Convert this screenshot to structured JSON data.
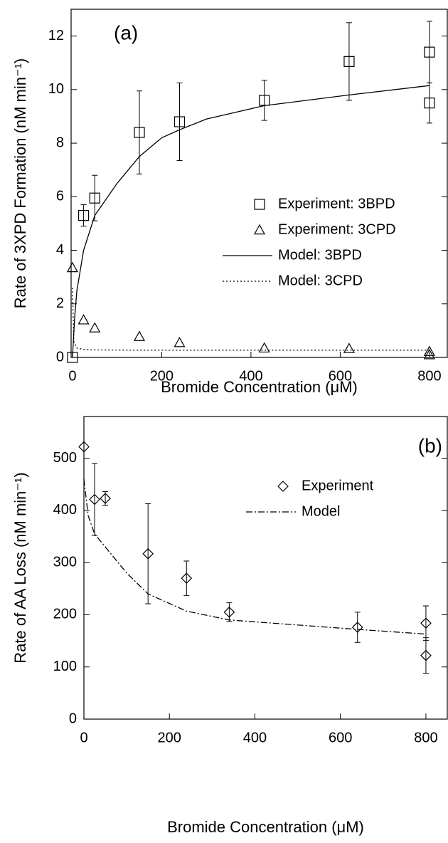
{
  "chart_data": [
    {
      "type": "scatter",
      "annotation": "(a)",
      "x_label": "Bromide Concentration (μM)",
      "y_label": "Rate of 3XPD Formation (nM min⁻¹)",
      "xlim": [
        -3,
        840
      ],
      "ylim": [
        0,
        13
      ],
      "xticks": [
        0,
        200,
        400,
        600,
        800
      ],
      "yticks": [
        0,
        2,
        4,
        6,
        8,
        10,
        12
      ],
      "series": [
        {
          "name": "Experiment: 3BPD",
          "color": "#000000",
          "marker": "square",
          "x": [
            0,
            25,
            50,
            150,
            240,
            430,
            620,
            800,
            800
          ],
          "values": [
            0,
            5.3,
            5.95,
            8.4,
            8.8,
            9.6,
            11.05,
            11.4,
            9.5
          ],
          "errors": [
            0,
            0.4,
            0.85,
            1.55,
            1.45,
            0.75,
            1.45,
            1.15,
            0.75
          ]
        },
        {
          "name": "Experiment: 3CPD",
          "color": "#000000",
          "marker": "triangle",
          "x": [
            0,
            25,
            50,
            150,
            240,
            430,
            620,
            800,
            800
          ],
          "values": [
            3.35,
            1.4,
            1.1,
            0.78,
            0.55,
            0.35,
            0.33,
            0.22,
            0.1
          ]
        },
        {
          "name": "Model: 3BPD",
          "color": "#000000",
          "line": "solid",
          "x": [
            0,
            5,
            10,
            25,
            50,
            100,
            150,
            200,
            240,
            300,
            430,
            620,
            800
          ],
          "values": [
            0,
            1.5,
            2.5,
            4.0,
            5.3,
            6.5,
            7.5,
            8.2,
            8.5,
            8.9,
            9.4,
            9.8,
            10.15
          ]
        },
        {
          "name": "Model: 3CPD",
          "color": "#000000",
          "line": "dotted",
          "x": [
            0,
            3,
            10,
            25,
            50,
            150,
            430,
            800
          ],
          "values": [
            2.6,
            0.6,
            0.35,
            0.3,
            0.28,
            0.27,
            0.27,
            0.27
          ]
        }
      ]
    },
    {
      "type": "scatter",
      "annotation": "(b)",
      "x_label": "Bromide Concentration (μM)",
      "y_label": "Rate of AA Loss (nM min⁻¹)",
      "xlim": [
        0,
        850
      ],
      "ylim": [
        0,
        580
      ],
      "xticks": [
        0,
        200,
        400,
        600,
        800
      ],
      "yticks": [
        0,
        100,
        200,
        300,
        400,
        500
      ],
      "series": [
        {
          "name": "Experiment",
          "color": "#000000",
          "marker": "diamond",
          "x": [
            0,
            25,
            50,
            150,
            240,
            340,
            640,
            800,
            800
          ],
          "values": [
            522,
            421,
            423,
            317,
            270,
            205,
            176,
            184,
            122
          ],
          "errors": [
            0,
            69,
            13,
            96,
            33,
            18,
            29,
            33,
            34
          ]
        },
        {
          "name": "Model",
          "color": "#000000",
          "line": "dashdot",
          "x": [
            0,
            10,
            25,
            50,
            100,
            150,
            240,
            340,
            640,
            800
          ],
          "values": [
            460,
            390,
            355,
            330,
            280,
            240,
            207,
            190,
            172,
            163
          ]
        }
      ]
    }
  ]
}
